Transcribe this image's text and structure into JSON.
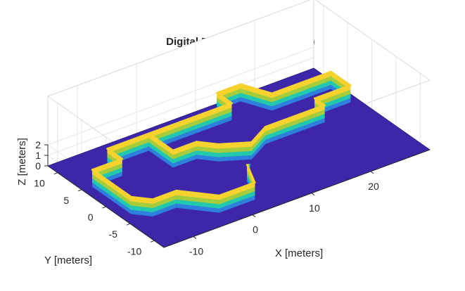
{
  "chart_data": {
    "type": "surface",
    "title": "Digital Elevation Model (DEM)",
    "xlabel": "X [meters]",
    "ylabel": "Y [meters]",
    "zlabel": "Z [meters]",
    "x_ticks": [
      -10,
      0,
      10,
      20
    ],
    "y_ticks": [
      -10,
      -5,
      0,
      5,
      10
    ],
    "z_ticks": [
      0,
      1,
      2
    ],
    "xlim": [
      -15,
      30
    ],
    "ylim": [
      -12,
      12
    ],
    "zlim": [
      0,
      2
    ],
    "grid": true,
    "colormap": "parula",
    "colors": {
      "ground": "#3e26a8",
      "low": "#2f7fdc",
      "mid": "#23c9ae",
      "high_mid": "#a4cc3c",
      "top": "#f5d22e"
    },
    "wall_height": 2,
    "wall_polyline": [
      [
        -14,
        -4
      ],
      [
        -14,
        4
      ],
      [
        -9,
        4
      ],
      [
        -9,
        7
      ],
      [
        -2,
        7
      ],
      [
        4,
        7
      ],
      [
        12,
        7
      ],
      [
        12,
        10
      ],
      [
        16,
        10
      ],
      [
        18,
        6
      ],
      [
        28,
        6
      ],
      [
        28,
        2
      ],
      [
        22,
        2
      ],
      [
        22,
        0
      ],
      [
        12,
        0
      ],
      [
        8,
        -2
      ],
      [
        4,
        -6
      ],
      [
        2,
        -10
      ],
      [
        -4,
        -10
      ],
      [
        -8,
        -6
      ],
      [
        -12,
        -6
      ],
      [
        -14,
        -4
      ]
    ],
    "inner_wall": [
      [
        -2,
        7
      ],
      [
        -2,
        2
      ],
      [
        2,
        2
      ],
      [
        4,
        0
      ],
      [
        8,
        -2
      ]
    ]
  }
}
